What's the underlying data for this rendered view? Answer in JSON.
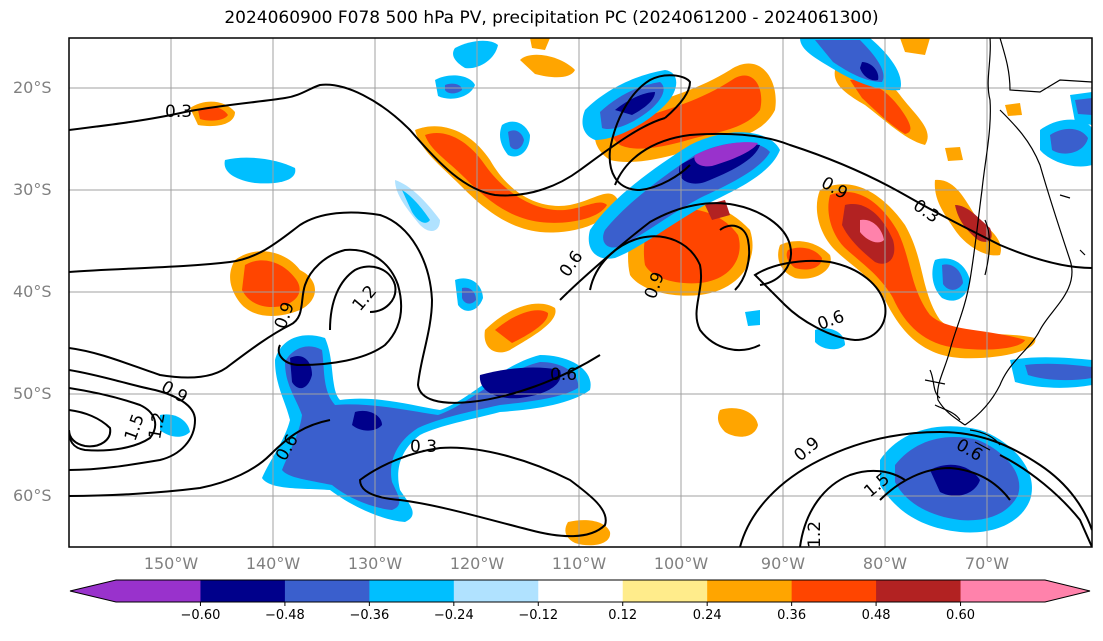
{
  "title": "2024060900 F078 500 hPa PV, precipitation PC (2024061200 - 2024061300)",
  "lat_labels": [
    "20°S",
    "30°S",
    "40°S",
    "50°S",
    "60°S"
  ],
  "lon_labels": [
    "150°W",
    "140°W",
    "130°W",
    "120°W",
    "110°W",
    "100°W",
    "90°W",
    "80°W",
    "70°W"
  ],
  "map_extent": {
    "lon_min": -160,
    "lon_max": -61,
    "lat_min": -65,
    "lat_max": -15
  },
  "contour_labels": [
    "0.3",
    "1.2",
    "0.9",
    "0.6",
    "0.9",
    "1.5",
    "1.2",
    "0.6",
    "0.3",
    "0.6",
    "0.9",
    "0.9",
    "0.3",
    "0.6",
    "0.9",
    "1.5",
    "0.6",
    "1.2"
  ],
  "colorbar": {
    "colors": [
      "#9932cc",
      "#00008b",
      "#3a5fcd",
      "#00bfff",
      "#b0e2ff",
      "#ffffff",
      "#ffec8b",
      "#ffa500",
      "#ff4500",
      "#b22222",
      "#ff82ab"
    ],
    "tick_labels": [
      "−0.60",
      "−0.48",
      "−0.36",
      "−0.24",
      "−0.12",
      "0.12",
      "0.24",
      "0.36",
      "0.48",
      "0.60"
    ]
  },
  "colors": {
    "grid": "#a0a0a0",
    "contour": "#000000",
    "coast": "#000000",
    "axis_label": "#808080"
  }
}
